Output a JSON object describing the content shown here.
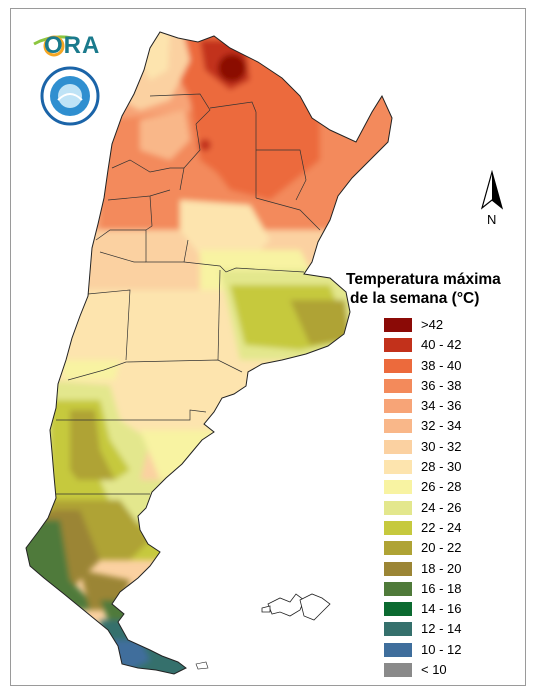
{
  "legend": {
    "title_line1": "Temperatura máxima",
    "title_line2": "de la semana (°C)",
    "items": [
      {
        "label": ">42",
        "color": "#8b0a06"
      },
      {
        "label": "40 - 42",
        "color": "#c2311b"
      },
      {
        "label": "38 - 40",
        "color": "#ec6a3c"
      },
      {
        "label": "36 - 38",
        "color": "#f38a5b"
      },
      {
        "label": "34 - 36",
        "color": "#f7a477"
      },
      {
        "label": "32 - 34",
        "color": "#f9b789"
      },
      {
        "label": "30 - 32",
        "color": "#fbd1a1"
      },
      {
        "label": "28 - 30",
        "color": "#fde4ae"
      },
      {
        "label": "26 - 28",
        "color": "#f8f3a2"
      },
      {
        "label": "24 - 26",
        "color": "#e3e78d"
      },
      {
        "label": "22 - 24",
        "color": "#c6c93e"
      },
      {
        "label": "20 - 22",
        "color": "#afa335"
      },
      {
        "label": "18 - 20",
        "color": "#9b8535"
      },
      {
        "label": "16 - 18",
        "color": "#4f7a3a"
      },
      {
        "label": "14 - 16",
        "color": "#0b6a30"
      },
      {
        "label": "12 - 14",
        "color": "#35706c"
      },
      {
        "label": "10 - 12",
        "color": "#3f6e9c"
      },
      {
        "label": "< 10",
        "color": "#8a8a8a"
      }
    ]
  },
  "logos": {
    "ora": "ORA",
    "seal_icon": "smn-seal-icon"
  },
  "north_arrow": {
    "label": "N"
  }
}
